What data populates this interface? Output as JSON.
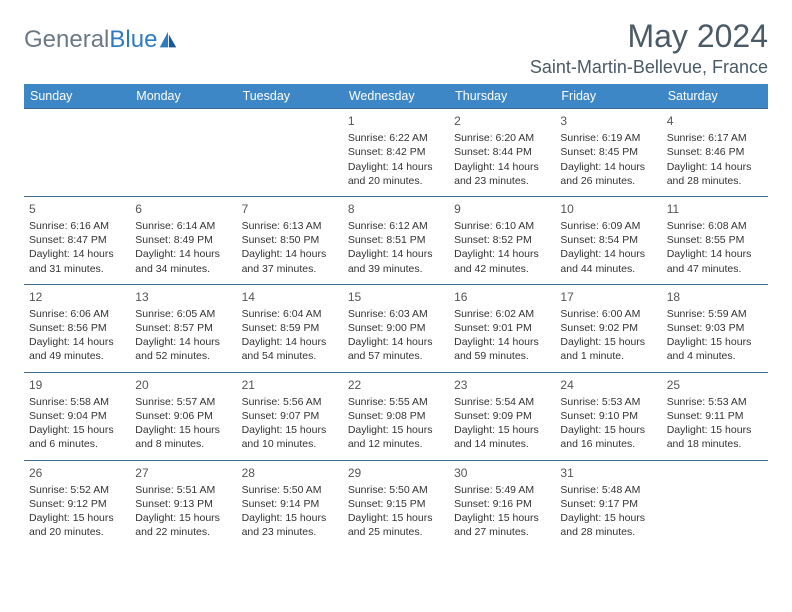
{
  "brand": {
    "name_gray": "General",
    "name_blue": "Blue"
  },
  "title": "May 2024",
  "location": "Saint-Martin-Bellevue, France",
  "colors": {
    "header_bg": "#3d87c7",
    "header_text": "#ffffff",
    "row_border": "#3d6a92",
    "title_color": "#4a5a66",
    "logo_gray": "#6b7a87",
    "logo_blue": "#2f7bbf",
    "cell_text": "#333333",
    "background": "#ffffff"
  },
  "layout": {
    "columns": 7,
    "rows": 5,
    "cell_fontsize": 10.5,
    "header_fontsize": 12.5,
    "title_fontsize": 32
  },
  "weekdays": [
    "Sunday",
    "Monday",
    "Tuesday",
    "Wednesday",
    "Thursday",
    "Friday",
    "Saturday"
  ],
  "weeks": [
    [
      null,
      null,
      null,
      {
        "day": "1",
        "sunrise": "Sunrise: 6:22 AM",
        "sunset": "Sunset: 8:42 PM",
        "daylight": "Daylight: 14 hours and 20 minutes."
      },
      {
        "day": "2",
        "sunrise": "Sunrise: 6:20 AM",
        "sunset": "Sunset: 8:44 PM",
        "daylight": "Daylight: 14 hours and 23 minutes."
      },
      {
        "day": "3",
        "sunrise": "Sunrise: 6:19 AM",
        "sunset": "Sunset: 8:45 PM",
        "daylight": "Daylight: 14 hours and 26 minutes."
      },
      {
        "day": "4",
        "sunrise": "Sunrise: 6:17 AM",
        "sunset": "Sunset: 8:46 PM",
        "daylight": "Daylight: 14 hours and 28 minutes."
      }
    ],
    [
      {
        "day": "5",
        "sunrise": "Sunrise: 6:16 AM",
        "sunset": "Sunset: 8:47 PM",
        "daylight": "Daylight: 14 hours and 31 minutes."
      },
      {
        "day": "6",
        "sunrise": "Sunrise: 6:14 AM",
        "sunset": "Sunset: 8:49 PM",
        "daylight": "Daylight: 14 hours and 34 minutes."
      },
      {
        "day": "7",
        "sunrise": "Sunrise: 6:13 AM",
        "sunset": "Sunset: 8:50 PM",
        "daylight": "Daylight: 14 hours and 37 minutes."
      },
      {
        "day": "8",
        "sunrise": "Sunrise: 6:12 AM",
        "sunset": "Sunset: 8:51 PM",
        "daylight": "Daylight: 14 hours and 39 minutes."
      },
      {
        "day": "9",
        "sunrise": "Sunrise: 6:10 AM",
        "sunset": "Sunset: 8:52 PM",
        "daylight": "Daylight: 14 hours and 42 minutes."
      },
      {
        "day": "10",
        "sunrise": "Sunrise: 6:09 AM",
        "sunset": "Sunset: 8:54 PM",
        "daylight": "Daylight: 14 hours and 44 minutes."
      },
      {
        "day": "11",
        "sunrise": "Sunrise: 6:08 AM",
        "sunset": "Sunset: 8:55 PM",
        "daylight": "Daylight: 14 hours and 47 minutes."
      }
    ],
    [
      {
        "day": "12",
        "sunrise": "Sunrise: 6:06 AM",
        "sunset": "Sunset: 8:56 PM",
        "daylight": "Daylight: 14 hours and 49 minutes."
      },
      {
        "day": "13",
        "sunrise": "Sunrise: 6:05 AM",
        "sunset": "Sunset: 8:57 PM",
        "daylight": "Daylight: 14 hours and 52 minutes."
      },
      {
        "day": "14",
        "sunrise": "Sunrise: 6:04 AM",
        "sunset": "Sunset: 8:59 PM",
        "daylight": "Daylight: 14 hours and 54 minutes."
      },
      {
        "day": "15",
        "sunrise": "Sunrise: 6:03 AM",
        "sunset": "Sunset: 9:00 PM",
        "daylight": "Daylight: 14 hours and 57 minutes."
      },
      {
        "day": "16",
        "sunrise": "Sunrise: 6:02 AM",
        "sunset": "Sunset: 9:01 PM",
        "daylight": "Daylight: 14 hours and 59 minutes."
      },
      {
        "day": "17",
        "sunrise": "Sunrise: 6:00 AM",
        "sunset": "Sunset: 9:02 PM",
        "daylight": "Daylight: 15 hours and 1 minute."
      },
      {
        "day": "18",
        "sunrise": "Sunrise: 5:59 AM",
        "sunset": "Sunset: 9:03 PM",
        "daylight": "Daylight: 15 hours and 4 minutes."
      }
    ],
    [
      {
        "day": "19",
        "sunrise": "Sunrise: 5:58 AM",
        "sunset": "Sunset: 9:04 PM",
        "daylight": "Daylight: 15 hours and 6 minutes."
      },
      {
        "day": "20",
        "sunrise": "Sunrise: 5:57 AM",
        "sunset": "Sunset: 9:06 PM",
        "daylight": "Daylight: 15 hours and 8 minutes."
      },
      {
        "day": "21",
        "sunrise": "Sunrise: 5:56 AM",
        "sunset": "Sunset: 9:07 PM",
        "daylight": "Daylight: 15 hours and 10 minutes."
      },
      {
        "day": "22",
        "sunrise": "Sunrise: 5:55 AM",
        "sunset": "Sunset: 9:08 PM",
        "daylight": "Daylight: 15 hours and 12 minutes."
      },
      {
        "day": "23",
        "sunrise": "Sunrise: 5:54 AM",
        "sunset": "Sunset: 9:09 PM",
        "daylight": "Daylight: 15 hours and 14 minutes."
      },
      {
        "day": "24",
        "sunrise": "Sunrise: 5:53 AM",
        "sunset": "Sunset: 9:10 PM",
        "daylight": "Daylight: 15 hours and 16 minutes."
      },
      {
        "day": "25",
        "sunrise": "Sunrise: 5:53 AM",
        "sunset": "Sunset: 9:11 PM",
        "daylight": "Daylight: 15 hours and 18 minutes."
      }
    ],
    [
      {
        "day": "26",
        "sunrise": "Sunrise: 5:52 AM",
        "sunset": "Sunset: 9:12 PM",
        "daylight": "Daylight: 15 hours and 20 minutes."
      },
      {
        "day": "27",
        "sunrise": "Sunrise: 5:51 AM",
        "sunset": "Sunset: 9:13 PM",
        "daylight": "Daylight: 15 hours and 22 minutes."
      },
      {
        "day": "28",
        "sunrise": "Sunrise: 5:50 AM",
        "sunset": "Sunset: 9:14 PM",
        "daylight": "Daylight: 15 hours and 23 minutes."
      },
      {
        "day": "29",
        "sunrise": "Sunrise: 5:50 AM",
        "sunset": "Sunset: 9:15 PM",
        "daylight": "Daylight: 15 hours and 25 minutes."
      },
      {
        "day": "30",
        "sunrise": "Sunrise: 5:49 AM",
        "sunset": "Sunset: 9:16 PM",
        "daylight": "Daylight: 15 hours and 27 minutes."
      },
      {
        "day": "31",
        "sunrise": "Sunrise: 5:48 AM",
        "sunset": "Sunset: 9:17 PM",
        "daylight": "Daylight: 15 hours and 28 minutes."
      },
      null
    ]
  ]
}
